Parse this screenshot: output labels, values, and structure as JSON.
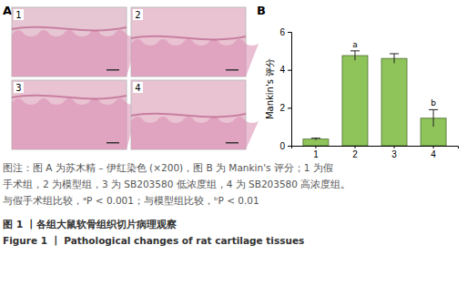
{
  "panel_labels": [
    "A",
    "B"
  ],
  "panel_a": {
    "images": [
      "1",
      "2",
      "3",
      "4"
    ]
  },
  "chart_data": {
    "type": "bar",
    "ylabel": "Mankin's 评分",
    "categories": [
      "1",
      "2",
      "3",
      "4"
    ],
    "values": [
      0.35,
      4.75,
      4.6,
      1.45
    ],
    "errors": [
      0.05,
      0.25,
      0.25,
      0.45
    ],
    "color": "#8fc45a",
    "ylim": [
      0,
      6
    ],
    "yticks": [
      0,
      2,
      4,
      6
    ],
    "annotations": [
      {
        "text": "a",
        "category": "2"
      },
      {
        "text": "b",
        "category": "4"
      }
    ]
  },
  "caption": {
    "lines": [
      "图注：图 A 为苏木精 – 伊红染色 (×200)，图 B 为 Mankin's 评分；1 为假",
      "手术组，2 为模型组，3 为 SB203580 低浓度组，4 为 SB203580 高浓度组。",
      "与假手术组比较，ᵃP < 0.001；与模型组比较，ᵇP < 0.01"
    ],
    "title_zh": "图 1 丨各组大鼠软骨组织切片病理观察",
    "title_en": "Figure 1 丨 Pathological changes of rat cartilage tissues"
  }
}
